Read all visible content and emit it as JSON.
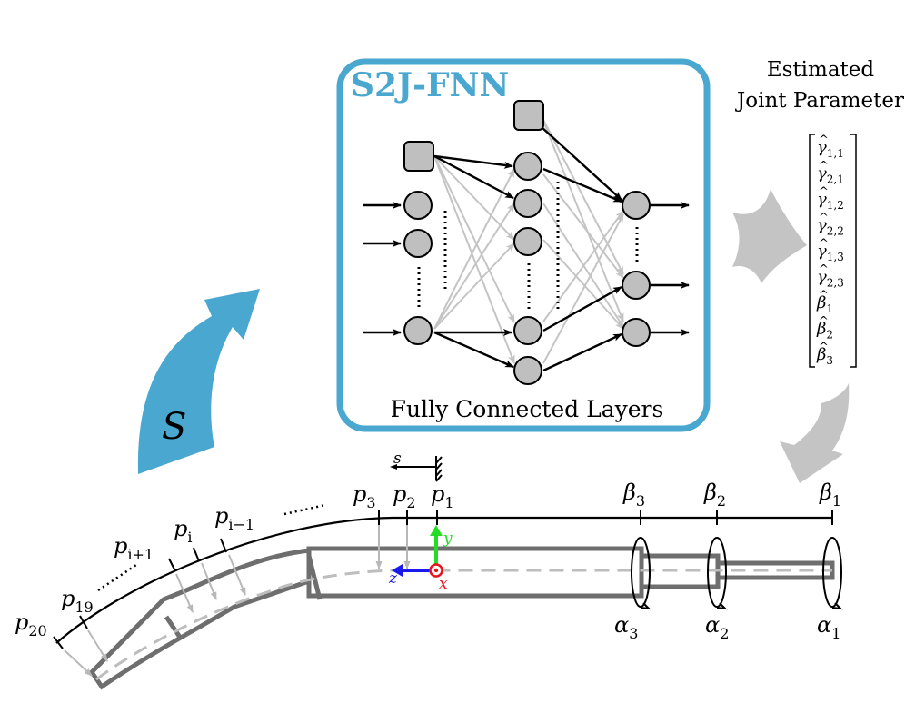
{
  "network": {
    "title": "S2J-FNN",
    "caption": "Fully Connected Layers"
  },
  "input_arrow": {
    "label": "S"
  },
  "output": {
    "title_line1": "Estimated",
    "title_line2": "Joint Parameter",
    "vector": [
      {
        "sym": "γ",
        "sub": "1,1"
      },
      {
        "sym": "γ",
        "sub": "2,1"
      },
      {
        "sym": "γ",
        "sub": "1,2"
      },
      {
        "sym": "γ",
        "sub": "2,2"
      },
      {
        "sym": "γ",
        "sub": "1,3"
      },
      {
        "sym": "γ",
        "sub": "2,3"
      },
      {
        "sym": "β",
        "sub": "1"
      },
      {
        "sym": "β",
        "sub": "2"
      },
      {
        "sym": "β",
        "sub": "3"
      }
    ]
  },
  "robot": {
    "arc_axis_label": "s",
    "points": [
      {
        "sym": "p",
        "sub": "1"
      },
      {
        "sym": "p",
        "sub": "2"
      },
      {
        "sym": "p",
        "sub": "3"
      },
      {
        "sym": "p",
        "sub": "i−1"
      },
      {
        "sym": "p",
        "sub": "i"
      },
      {
        "sym": "p",
        "sub": "i+1"
      },
      {
        "sym": "p",
        "sub": "19"
      },
      {
        "sym": "p",
        "sub": "20"
      }
    ],
    "betas": [
      {
        "sym": "β",
        "sub": "3"
      },
      {
        "sym": "β",
        "sub": "2"
      },
      {
        "sym": "β",
        "sub": "1"
      }
    ],
    "alphas": [
      {
        "sym": "α",
        "sub": "3"
      },
      {
        "sym": "α",
        "sub": "2"
      },
      {
        "sym": "α",
        "sub": "1"
      }
    ],
    "axes": {
      "x": "x",
      "y": "y",
      "z": "z"
    }
  },
  "colors": {
    "accent": "#4aa7cf",
    "node_fill": "#bfbfbf",
    "arrow_gray": "#c4c4c4",
    "tube": "#6e6e6e",
    "axis_x": "#e8141b",
    "axis_y": "#22dd22",
    "axis_z": "#1a1aee"
  }
}
